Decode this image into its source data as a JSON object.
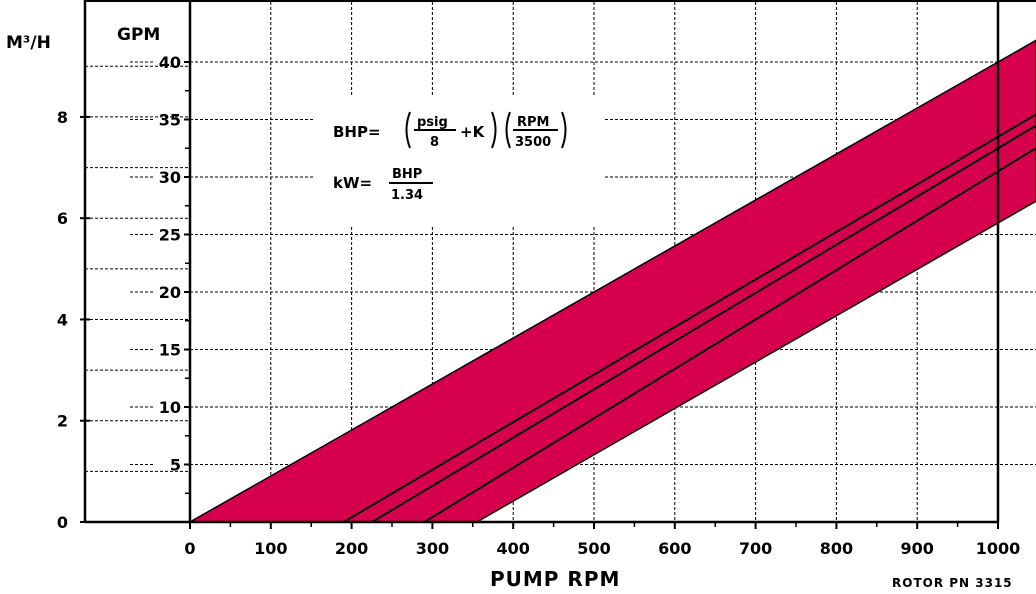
{
  "chart_data": {
    "type": "area",
    "xlabel": "PUMP RPM",
    "x_ticks": [
      "0",
      "100",
      "200",
      "300",
      "400",
      "500",
      "600",
      "700",
      "800",
      "900",
      "1000"
    ],
    "xlim": [
      0,
      1000
    ],
    "left_axis": {
      "unit": "M³/H",
      "ticks": [
        "0",
        "2",
        "4",
        "6",
        "8"
      ],
      "range": [
        0,
        9.085
      ]
    },
    "right_axis": {
      "unit": "GPM",
      "ticks": [
        "5",
        "10",
        "15",
        "20",
        "25",
        "30",
        "35",
        "40"
      ],
      "range": [
        0,
        40
      ]
    },
    "grid": true,
    "band": {
      "color": "#d6004f",
      "upper": {
        "x": [
          0,
          1000
        ],
        "y_gpm": [
          0,
          40
        ]
      },
      "lower": {
        "x": [
          355,
          1000
        ],
        "y_gpm": [
          0,
          26
        ]
      }
    },
    "series": [
      {
        "x": [
          190,
          1000
        ],
        "y_gpm": [
          0,
          33.5
        ]
      },
      {
        "x": [
          225,
          1000
        ],
        "y_gpm": [
          0,
          32.5
        ]
      },
      {
        "x": [
          290,
          1000
        ],
        "y_gpm": [
          0,
          30.5
        ]
      }
    ],
    "annotations": {
      "formula_bhp": {
        "lhs": "BHP=",
        "num1": "psig",
        "den1": "8",
        "plus_k": "+K",
        "num2": "RPM",
        "den2": "3500"
      },
      "formula_kw": {
        "lhs": "kW=",
        "num": "BHP",
        "den": "1.34"
      },
      "footnote": "ROTOR PN 3315"
    }
  }
}
